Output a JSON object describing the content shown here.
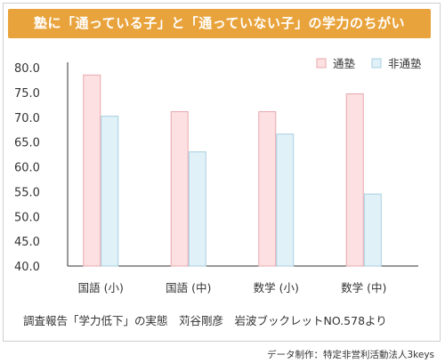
{
  "title": "塾に「通っている子」と「通っていない子」の学力のちがい",
  "source_text": "調査報告「学力低下」の実態　苅谷剛彦　岩波ブックレットNO.578より",
  "credit_text": "データ制作：特定非営利活動法人3keys",
  "colors": {
    "title_bg": "#e9a33c",
    "series_1_fill": "#fde0e2",
    "series_1_stroke": "#e8a8ae",
    "series_2_fill": "#e0f1f8",
    "series_2_stroke": "#a9cfe0"
  },
  "chart_data": {
    "type": "bar",
    "categories": [
      "国語 (小)",
      "国語 (中)",
      "数学 (小)",
      "数学 (中)"
    ],
    "series": [
      {
        "name": "通塾",
        "values": [
          78.6,
          71.2,
          71.2,
          74.8
        ]
      },
      {
        "name": "非通塾",
        "values": [
          70.3,
          63.1,
          66.7,
          54.6
        ]
      }
    ],
    "ylim": [
      40,
      80
    ],
    "yticks": [
      "80.0",
      "75.0",
      "70.0",
      "65.0",
      "60.0",
      "55.0",
      "50.0",
      "45.0",
      "40.0"
    ],
    "grid": false,
    "legend_position": "top-right"
  }
}
